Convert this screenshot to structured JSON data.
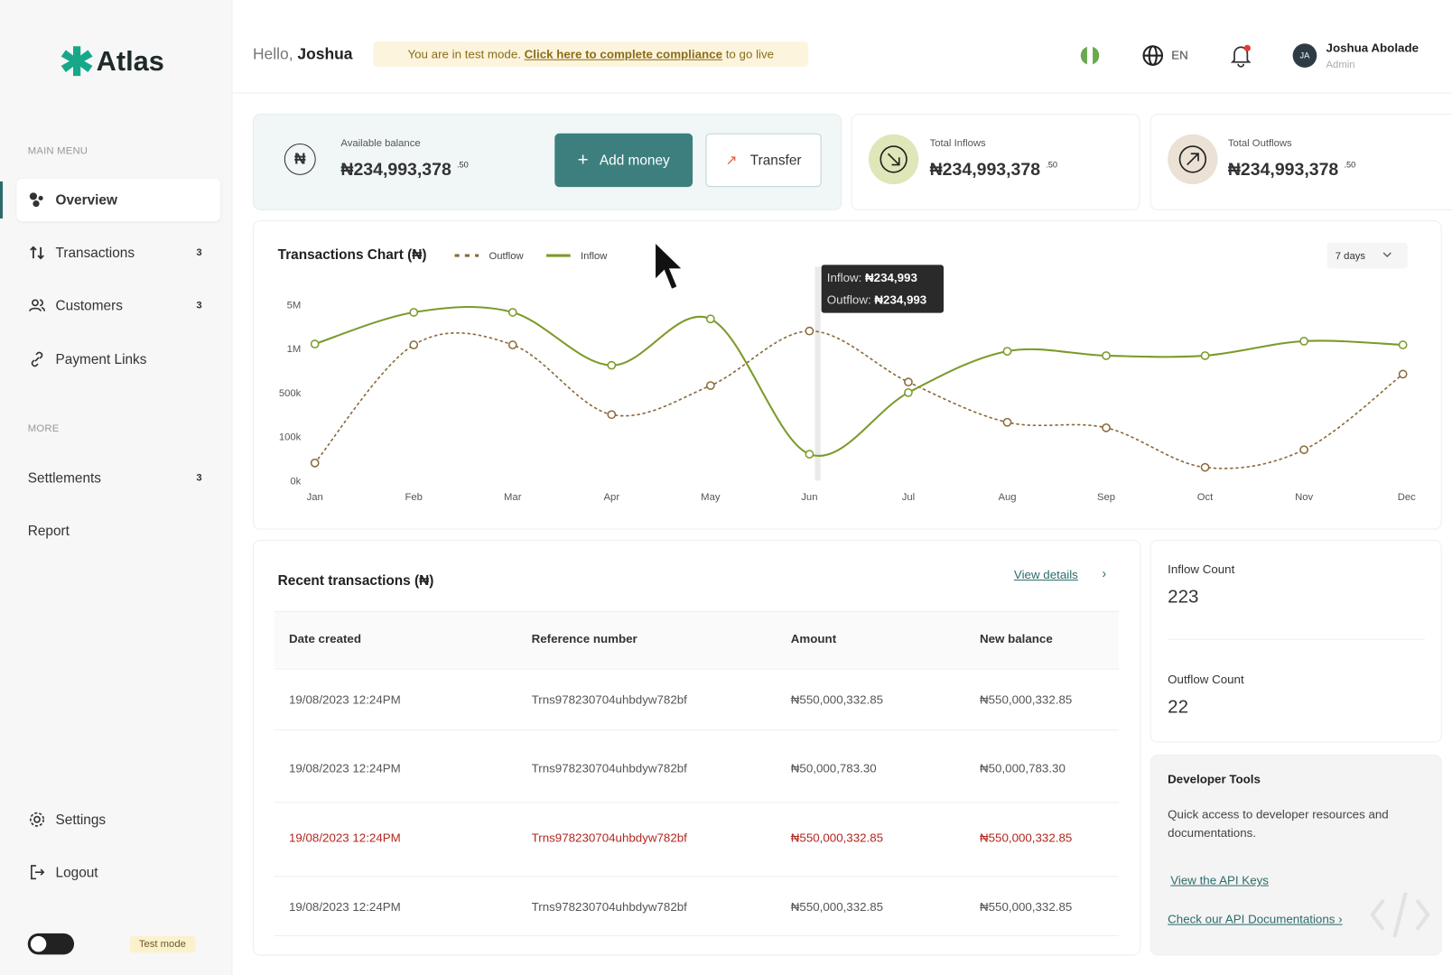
{
  "sidebar": {
    "logo": "Atlas",
    "main_menu_label": "MAIN MENU",
    "main_menu": [
      {
        "label": "Overview"
      },
      {
        "label": "Transactions",
        "badge": "3"
      },
      {
        "label": "Customers",
        "badge": "3"
      },
      {
        "label": "Payment Links"
      }
    ],
    "more_label": "MORE",
    "more": [
      {
        "label": "Settlements",
        "badge": "3"
      },
      {
        "label": "Report"
      }
    ],
    "bottom": [
      {
        "label": "Settings"
      },
      {
        "label": "Logout"
      }
    ],
    "test_mode": "Test mode"
  },
  "header": {
    "greeting": "Hello,",
    "name": "Joshua",
    "notice_prefix": "You are in test mode.",
    "notice_link": "Click here to complete compliance",
    "notice_suffix": "to go live",
    "language": "EN",
    "user_initials": "JA",
    "user_name": "Joshua Abolade",
    "user_role": "Admin"
  },
  "balance": {
    "label": "Available balance",
    "amount": "₦234,993,378",
    "cents": ".50",
    "add_money": "Add money",
    "transfer": "Transfer"
  },
  "inflows": {
    "label": "Total Inflows",
    "amount": "₦234,993,378",
    "cents": ".50"
  },
  "outflows": {
    "label": "Total Outflows",
    "amount": "₦234,993,378",
    "cents": ".50"
  },
  "chart_data": {
    "type": "line",
    "title": "Transactions Chart (₦)",
    "period": "7 days",
    "categories": [
      "Jan",
      "Feb",
      "Mar",
      "Apr",
      "May",
      "Jun",
      "Jul",
      "Aug",
      "Sep",
      "Oct",
      "Nov",
      "Dec"
    ],
    "series": [
      {
        "name": "Outflow",
        "color": "#8a6a3a",
        "dotted": true,
        "values": [
          40000,
          1340000,
          1340000,
          300000,
          580000,
          2600000,
          620000,
          230000,
          180000,
          30000,
          70000,
          710000
        ]
      },
      {
        "name": "Inflow",
        "color": "#7c9a2a",
        "dotted": false,
        "values": [
          1420000,
          4300000,
          4300000,
          810000,
          3700000,
          60000,
          500000,
          970000,
          920000,
          920000,
          1680000,
          1340000
        ]
      }
    ],
    "ylim": [
      0,
      5000000
    ],
    "yticks": [
      {
        "value": 0,
        "label": "0k"
      },
      {
        "value": 100000,
        "label": "100k"
      },
      {
        "value": 500000,
        "label": "500k"
      },
      {
        "value": 1000000,
        "label": "1M"
      },
      {
        "value": 5000000,
        "label": "5M"
      }
    ],
    "grid": false,
    "tooltip": {
      "inflow_label": "Inflow:",
      "inflow_value": "₦234,993",
      "outflow_label": "Outflow:",
      "outflow_value": "₦234,993"
    }
  },
  "recent": {
    "title": "Recent transactions (₦)",
    "view_details": "View details",
    "columns": [
      "Date created",
      "Reference number",
      "Amount",
      "New balance"
    ],
    "rows": [
      [
        "19/08/2023  12:24PM",
        "Trns978230704uhbdyw782bf",
        "₦550,000,332.85",
        "₦550,000,332.85"
      ],
      [
        "19/08/2023  12:24PM",
        "Trns978230704uhbdyw782bf",
        "₦50,000,783.30",
        "₦50,000,783.30"
      ],
      [
        "19/08/2023  12:24PM",
        "Trns978230704uhbdyw782bf",
        "₦550,000,332.85",
        "₦550,000,332.85"
      ],
      [
        "19/08/2023  12:24PM",
        "Trns978230704uhbdyw782bf",
        "₦550,000,332.85",
        "₦550,000,332.85"
      ]
    ]
  },
  "counts": {
    "inflow_label": "Inflow Count",
    "inflow": 223,
    "outflow_label": "Outflow Count",
    "outflow": 22
  },
  "developer": {
    "title": "Developer Tools",
    "text": "Quick access to developer resources and documentations.",
    "api_keys": "View the API Keys",
    "docs": "Check our API Documentations ›"
  }
}
